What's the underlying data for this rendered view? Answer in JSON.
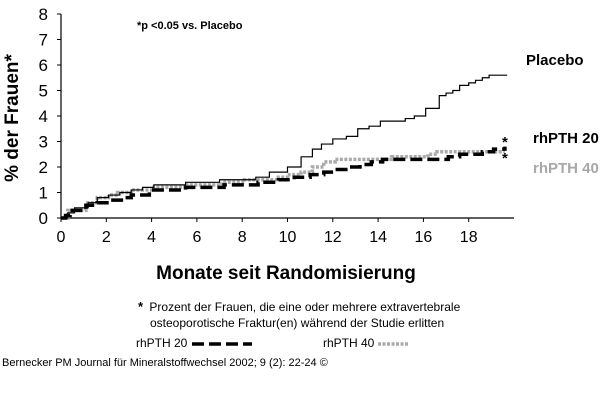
{
  "chart_data": {
    "type": "line",
    "title": "",
    "annotation": "*p <0.05 vs. Placebo",
    "xlabel": "Monate seit Randomisierung",
    "ylabel": "% der Frauen*",
    "xlim": [
      0,
      20
    ],
    "ylim": [
      0,
      8
    ],
    "xticks": [
      "0",
      "2",
      "4",
      "6",
      "8",
      "10",
      "12",
      "14",
      "16",
      "18"
    ],
    "yticks": [
      "0",
      "1",
      "2",
      "3",
      "4",
      "5",
      "6",
      "7",
      "8"
    ],
    "grid": false,
    "series": [
      {
        "name": "Placebo",
        "color": "#000000",
        "style": "solid",
        "x": [
          0,
          0.3,
          0.6,
          1.2,
          1.6,
          2.1,
          2.6,
          3.1,
          3.6,
          4.1,
          5.5,
          7.0,
          8.6,
          9.2,
          10.0,
          10.6,
          11.1,
          11.5,
          12.0,
          12.6,
          13.1,
          13.6,
          14.1,
          15.2,
          15.6,
          16.1,
          16.7,
          17.0,
          17.3,
          17.6,
          18.0,
          18.3,
          18.6,
          18.9,
          19.4,
          19.7
        ],
        "y": [
          0,
          0.2,
          0.4,
          0.6,
          0.8,
          0.9,
          1.0,
          1.1,
          1.2,
          1.3,
          1.4,
          1.5,
          1.6,
          1.8,
          2.0,
          2.4,
          2.7,
          2.9,
          3.1,
          3.2,
          3.5,
          3.6,
          3.8,
          3.9,
          4.0,
          4.3,
          4.8,
          4.9,
          5.0,
          5.2,
          5.3,
          5.4,
          5.5,
          5.6,
          5.6,
          5.6
        ]
      },
      {
        "name": "rhPTH 20",
        "color": "#000000",
        "style": "dashed",
        "x": [
          0,
          0.2,
          0.4,
          1.1,
          1.6,
          2.2,
          2.8,
          3.1,
          3.9,
          5.5,
          7.2,
          8.7,
          9.6,
          10.3,
          11.0,
          11.6,
          12.1,
          12.7,
          13.2,
          13.7,
          14.2,
          16.6,
          17.1,
          17.6,
          18.1,
          18.6,
          19.1,
          19.6
        ],
        "y": [
          0,
          0.1,
          0.3,
          0.5,
          0.6,
          0.7,
          0.8,
          0.9,
          1.1,
          1.2,
          1.3,
          1.4,
          1.5,
          1.6,
          1.7,
          1.8,
          1.9,
          2.0,
          2.1,
          2.2,
          2.3,
          2.3,
          2.4,
          2.5,
          2.5,
          2.6,
          2.7,
          2.8
        ]
      },
      {
        "name": "rhPTH 40",
        "color": "#aaaaaa",
        "style": "dotted",
        "x": [
          0,
          0.3,
          1.1,
          1.6,
          2.1,
          2.5,
          3.1,
          3.6,
          4.1,
          5.6,
          7.1,
          8.1,
          9.6,
          10.0,
          10.6,
          11.1,
          11.6,
          12.1,
          13.6,
          14.6,
          15.6,
          16.2,
          16.6,
          17.1,
          17.5,
          18.0,
          18.5,
          19.6
        ],
        "y": [
          0,
          0.3,
          0.6,
          0.8,
          0.9,
          1.0,
          1.1,
          1.1,
          1.2,
          1.3,
          1.4,
          1.5,
          1.6,
          1.7,
          1.8,
          2.0,
          2.2,
          2.3,
          2.3,
          2.4,
          2.4,
          2.5,
          2.6,
          2.6,
          2.6,
          2.6,
          2.6,
          2.6
        ]
      }
    ]
  },
  "labels": {
    "placebo": "Placebo",
    "rhpth20": "rhPTH 20",
    "rhpth40": "rhPTH 40",
    "star": "*"
  },
  "footnote": {
    "marker": "*",
    "line1": "Prozent der Frauen, die eine oder mehrere extravertebrale",
    "line2": "osteoporotische Fraktur(en) während der Studie erlitten"
  },
  "legend": {
    "item1": "rhPTH 20",
    "item2": "rhPTH 40"
  },
  "citation": "Bernecker PM Journal für Mineralstoffwechsel 2002; 9 (2): 22-24 ©"
}
